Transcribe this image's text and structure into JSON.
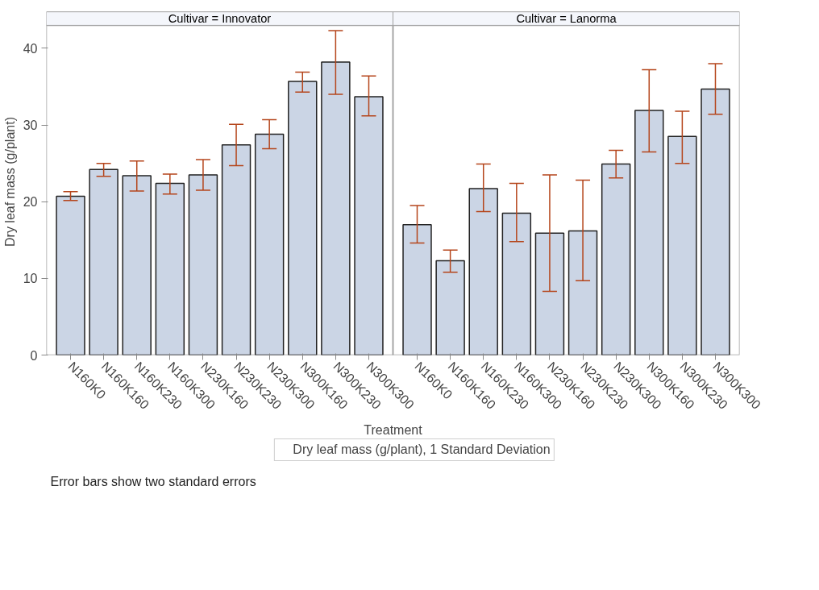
{
  "chart_data": [
    {
      "type": "bar",
      "title": "Cultivar = Innovator",
      "xlabel": "Treatment",
      "ylabel": "Dry leaf mass (g/plant)",
      "legend": "bottom",
      "annotations": [
        "Error bars show two standard errors"
      ],
      "categories": [
        "N160K0",
        "N160K160",
        "N160K230",
        "N160K300",
        "N230K160",
        "N230K230",
        "N230K300",
        "N300K160",
        "N300K230",
        "N300K300"
      ],
      "series": [
        {
          "name": "Dry leaf mass (g/plant), 1 Standard Deviation",
          "color": "#cbd5e5",
          "values": [
            20.7,
            24.2,
            23.4,
            22.4,
            23.5,
            27.4,
            28.8,
            35.7,
            38.2,
            33.7
          ],
          "errors": [
            [
              20.15,
              21.3
            ],
            [
              23.3,
              25.0
            ],
            [
              21.4,
              25.3
            ],
            [
              21.0,
              23.6
            ],
            [
              21.5,
              25.5
            ],
            [
              24.7,
              30.1
            ],
            [
              26.9,
              30.7
            ],
            [
              34.3,
              36.9
            ],
            [
              34.0,
              42.3
            ],
            [
              31.2,
              36.4
            ]
          ]
        }
      ],
      "ylim": [
        0,
        43
      ],
      "yticks": [
        0,
        10,
        20,
        30,
        40
      ]
    },
    {
      "type": "bar",
      "title": "Cultivar = Lanorma",
      "tick_labels": "x",
      "categories": [
        "N160K0",
        "N160K160",
        "N160K230",
        "N160K300",
        "N230K160",
        "N230K230",
        "N230K300",
        "N300K160",
        "N300K230",
        "N300K300"
      ],
      "series": [
        {
          "color": "#cbd5e5",
          "values": [
            17.0,
            12.3,
            21.7,
            18.5,
            15.9,
            16.2,
            24.9,
            31.9,
            28.5,
            34.7
          ],
          "errors": [
            [
              14.6,
              19.5
            ],
            [
              10.8,
              13.7
            ],
            [
              18.7,
              24.9
            ],
            [
              14.8,
              22.4
            ],
            [
              8.3,
              23.5
            ],
            [
              9.7,
              22.8
            ],
            [
              23.1,
              26.7
            ],
            [
              26.5,
              37.2
            ],
            [
              25.0,
              31.8
            ],
            [
              31.4,
              38.0
            ]
          ]
        }
      ],
      "ylim": [
        0,
        43
      ]
    }
  ]
}
